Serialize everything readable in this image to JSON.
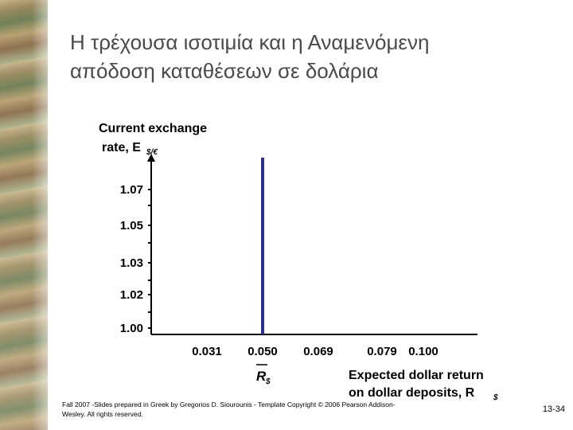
{
  "slide": {
    "title_line1": "Η τρέχουσα ισοτιμία και η Αναμενόμενη",
    "title_line2": "απόδοση καταθέσεων σε δολάρια",
    "footer_line1": "Fall 2007 -Slides prepared in Greek by Gregorios D. Siourounis - Template Copyright © 2006 Pearson Addison-",
    "footer_line2": "Wesley. All rights reserved.",
    "page_number": "13-34"
  },
  "chart_data": {
    "type": "line",
    "title": "",
    "ylabel_line1": "Current exchange",
    "ylabel_line2": "rate, E",
    "ylabel_subscript": "$/€",
    "xlabel_line1": "Expected dollar return",
    "xlabel_line2": "on dollar deposits, R",
    "xlabel_subscript": "$",
    "x_ticks": [
      0.031,
      0.05,
      0.069,
      0.079,
      0.1
    ],
    "x_tick_labels": [
      "0.031",
      "0.050",
      "0.069",
      "0.079",
      "0.100"
    ],
    "y_ticks": [
      1.0,
      1.02,
      1.03,
      1.05,
      1.07
    ],
    "y_tick_labels": [
      "1.00",
      "1.02",
      "1.03",
      "1.05",
      "1.07"
    ],
    "series": [
      {
        "name": "R",
        "name_subscript": "$",
        "x": [
          0.05,
          0.05
        ],
        "y": [
          0.98,
          1.09
        ],
        "color": "#2b2f8f"
      }
    ],
    "axis_color": "#000000",
    "grid": false
  }
}
